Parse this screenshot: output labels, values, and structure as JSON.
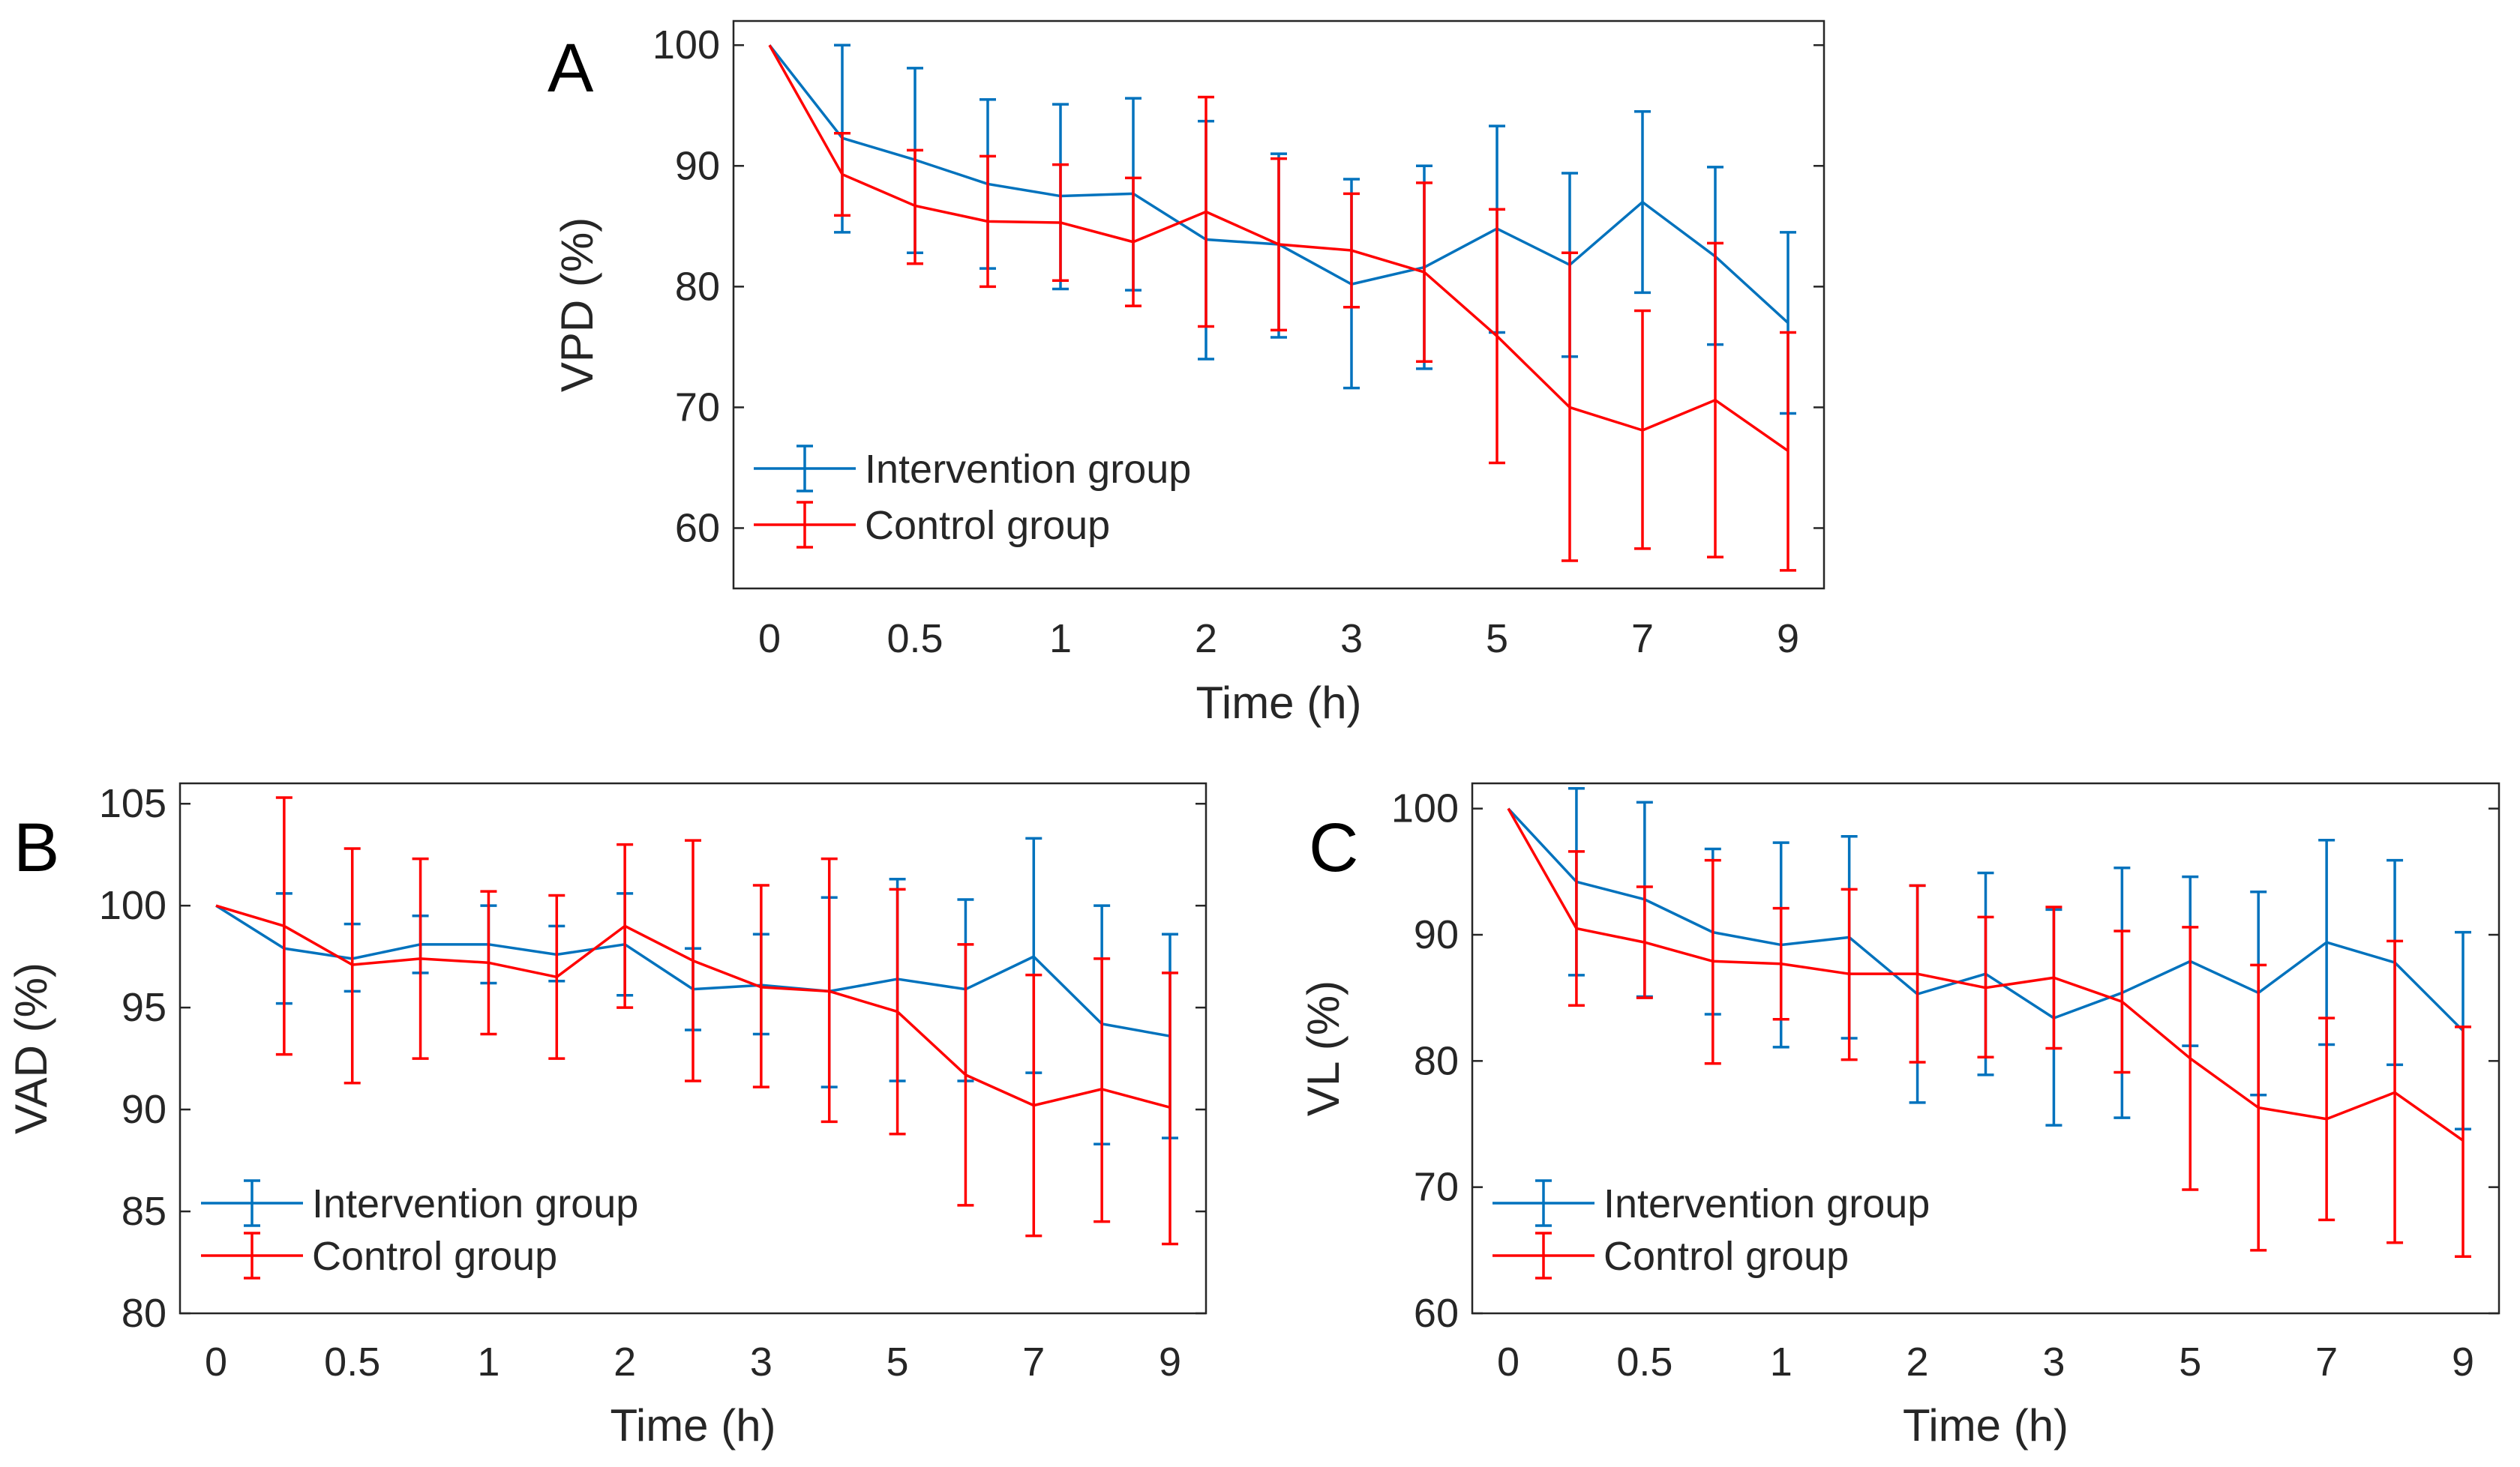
{
  "colors": {
    "intervention": "#0072BD",
    "control": "#FF0000",
    "axis": "#262626",
    "background": "#FFFFFF"
  },
  "chart_data": [
    {
      "panel": "A",
      "type": "line",
      "error_bars": true,
      "xlabel": "Time (h)",
      "ylabel": "VPD (%)",
      "x_tick_labels": [
        "0",
        "0.5",
        "1",
        "2",
        "3",
        "5",
        "7",
        "9"
      ],
      "y_ticks": [
        60,
        70,
        80,
        90,
        100
      ],
      "ylim": [
        55,
        102
      ],
      "legend_placement": "bottom-left",
      "series": [
        {
          "name": "Intervention group",
          "color": "#0072BD",
          "values": [
            100,
            92.3,
            90.5,
            88.5,
            87.5,
            87.7,
            83.9,
            83.5,
            80.2,
            81.6,
            84.8,
            81.8,
            87.0,
            82.5,
            77.0
          ],
          "lower": [
            100,
            84.5,
            82.8,
            81.5,
            79.8,
            79.7,
            74.0,
            75.8,
            71.6,
            73.2,
            76.2,
            74.2,
            79.5,
            75.2,
            69.5
          ],
          "upper": [
            100,
            100.0,
            98.1,
            95.5,
            95.1,
            95.6,
            93.7,
            91.0,
            88.9,
            90.0,
            93.3,
            89.4,
            94.5,
            89.9,
            84.5
          ]
        },
        {
          "name": "Control group",
          "color": "#FF0000",
          "values": [
            100,
            89.3,
            86.7,
            85.4,
            85.3,
            83.7,
            86.2,
            83.5,
            83.0,
            81.2,
            75.9,
            70.0,
            68.1,
            70.6,
            66.4
          ],
          "lower": [
            100,
            85.9,
            81.9,
            80.0,
            80.5,
            78.4,
            76.7,
            76.4,
            78.3,
            73.8,
            65.4,
            57.3,
            58.3,
            57.6,
            56.5
          ],
          "upper": [
            100,
            92.7,
            91.3,
            90.8,
            90.1,
            89.0,
            95.7,
            90.6,
            87.7,
            88.6,
            86.4,
            82.8,
            78.0,
            83.6,
            76.2
          ]
        }
      ]
    },
    {
      "panel": "B",
      "type": "line",
      "error_bars": true,
      "xlabel": "Time (h)",
      "ylabel": "VAD (%)",
      "x_tick_labels": [
        "0",
        "0.5",
        "1",
        "2",
        "3",
        "5",
        "7",
        "9"
      ],
      "y_ticks": [
        80,
        85,
        90,
        95,
        100,
        105
      ],
      "ylim": [
        80,
        106
      ],
      "legend_placement": "bottom-left",
      "series": [
        {
          "name": "Intervention group",
          "color": "#0072BD",
          "values": [
            100,
            97.9,
            97.4,
            98.1,
            98.1,
            97.6,
            98.1,
            95.9,
            96.1,
            95.8,
            96.4,
            95.9,
            97.5,
            94.2,
            93.6
          ],
          "lower": [
            100,
            95.2,
            95.8,
            96.7,
            96.2,
            96.3,
            95.6,
            93.9,
            93.7,
            91.1,
            91.4,
            91.4,
            91.8,
            88.3,
            88.6
          ],
          "upper": [
            100,
            100.6,
            99.1,
            99.5,
            100.0,
            99.0,
            100.6,
            97.9,
            98.6,
            100.4,
            101.3,
            100.3,
            103.3,
            100.0,
            98.6
          ]
        },
        {
          "name": "Control group",
          "color": "#FF0000",
          "values": [
            100,
            99.0,
            97.1,
            97.4,
            97.2,
            96.5,
            99.0,
            97.3,
            96.0,
            95.8,
            94.8,
            91.7,
            90.2,
            91.0,
            90.1
          ],
          "lower": [
            100,
            92.7,
            91.3,
            92.5,
            93.7,
            92.5,
            95.0,
            91.4,
            91.1,
            89.4,
            88.8,
            85.3,
            83.8,
            84.5,
            83.4
          ],
          "upper": [
            100,
            105.3,
            102.8,
            102.3,
            100.7,
            100.5,
            103.0,
            103.2,
            101.0,
            102.3,
            100.8,
            98.1,
            96.6,
            97.4,
            96.7
          ]
        }
      ]
    },
    {
      "panel": "C",
      "type": "line",
      "error_bars": true,
      "xlabel": "Time (h)",
      "ylabel": "VL (%)",
      "x_tick_labels": [
        "0",
        "0.5",
        "1",
        "2",
        "3",
        "5",
        "7",
        "9"
      ],
      "y_ticks": [
        60,
        70,
        80,
        90,
        100
      ],
      "ylim": [
        60,
        102
      ],
      "legend_placement": "bottom-left",
      "series": [
        {
          "name": "Intervention group",
          "color": "#0072BD",
          "values": [
            100,
            94.2,
            92.8,
            90.2,
            89.2,
            89.8,
            85.3,
            86.9,
            83.4,
            85.4,
            87.9,
            85.4,
            89.4,
            87.8,
            82.4
          ],
          "lower": [
            100,
            86.8,
            85.1,
            83.7,
            81.1,
            81.8,
            76.7,
            78.9,
            74.9,
            75.5,
            81.2,
            77.3,
            81.3,
            79.7,
            74.6
          ],
          "upper": [
            100,
            101.6,
            100.5,
            96.8,
            97.3,
            97.8,
            93.9,
            94.9,
            92.0,
            95.3,
            94.6,
            93.4,
            97.5,
            95.9,
            90.2
          ]
        },
        {
          "name": "Control group",
          "color": "#FF0000",
          "values": [
            100,
            90.5,
            89.4,
            87.9,
            87.7,
            86.9,
            86.9,
            85.8,
            86.6,
            84.7,
            80.2,
            76.3,
            75.4,
            77.5,
            73.7
          ],
          "lower": [
            100,
            84.4,
            85.0,
            79.8,
            83.3,
            80.1,
            79.9,
            80.3,
            81.0,
            79.1,
            69.8,
            65.0,
            67.4,
            65.6,
            64.5
          ],
          "upper": [
            100,
            96.6,
            93.8,
            95.9,
            92.1,
            93.6,
            93.9,
            91.4,
            92.2,
            90.3,
            90.6,
            87.6,
            83.4,
            89.5,
            82.7
          ]
        }
      ]
    }
  ]
}
